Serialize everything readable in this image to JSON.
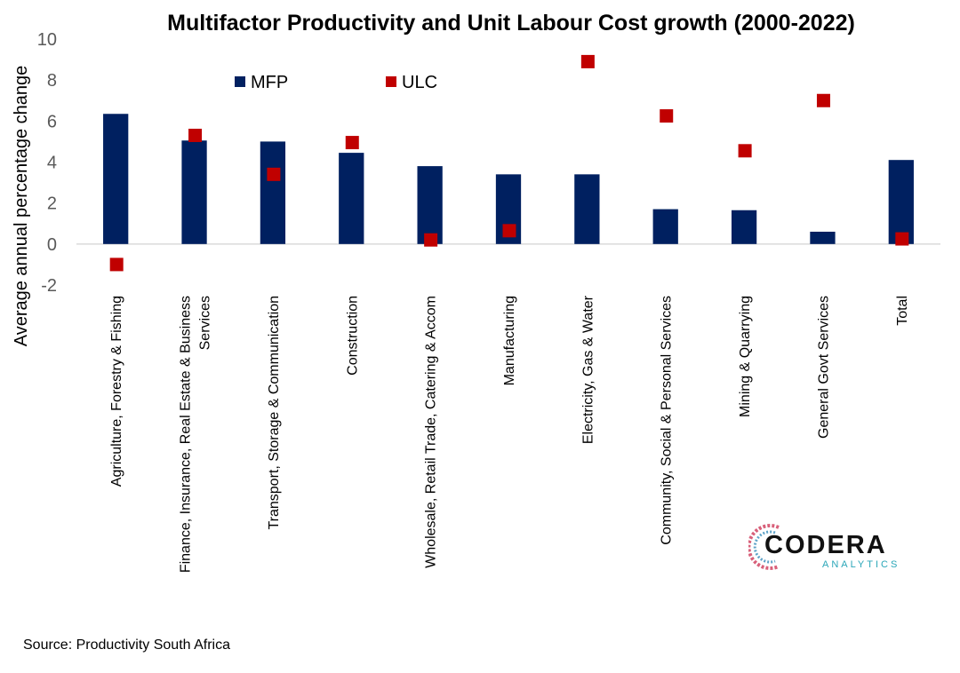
{
  "chart_data": {
    "type": "bar",
    "title": "Multifactor Productivity and Unit Labour Cost growth (2000-2022)",
    "ylabel": "Average annual percentage change",
    "xlabel": "",
    "ylim": [
      -2,
      10
    ],
    "yticks": [
      -2,
      0,
      2,
      4,
      6,
      8,
      10
    ],
    "grid": false,
    "legend_position": "top-left",
    "categories": [
      [
        "Agriculture, Forestry & Fishing"
      ],
      [
        "Finance, Insurance, Real Estate & Business",
        "Services"
      ],
      [
        "Transport, Storage & Communication"
      ],
      [
        "Construction"
      ],
      [
        "Wholesale, Retail Trade, Catering & Accom"
      ],
      [
        "Manufacturing"
      ],
      [
        "Electricity, Gas & Water"
      ],
      [
        "Community, Social & Personal Services"
      ],
      [
        "Mining & Quarrying"
      ],
      [
        "General Govt Services"
      ],
      [
        "Total"
      ]
    ],
    "series": [
      {
        "name": "MFP",
        "type": "bar",
        "color": "#002060",
        "values": [
          6.35,
          5.05,
          5.0,
          4.45,
          3.8,
          3.4,
          3.4,
          1.7,
          1.65,
          0.6,
          4.1
        ]
      },
      {
        "name": "ULC",
        "type": "scatter",
        "marker": "square",
        "color": "#c00000",
        "values": [
          -1.0,
          5.3,
          3.4,
          4.95,
          0.2,
          0.65,
          8.9,
          6.25,
          4.55,
          7.0,
          0.25
        ]
      }
    ]
  },
  "footer": {
    "source": "Source: Productivity South Africa"
  },
  "logo": {
    "word": "CODERA",
    "sub": "ANALYTICS"
  }
}
